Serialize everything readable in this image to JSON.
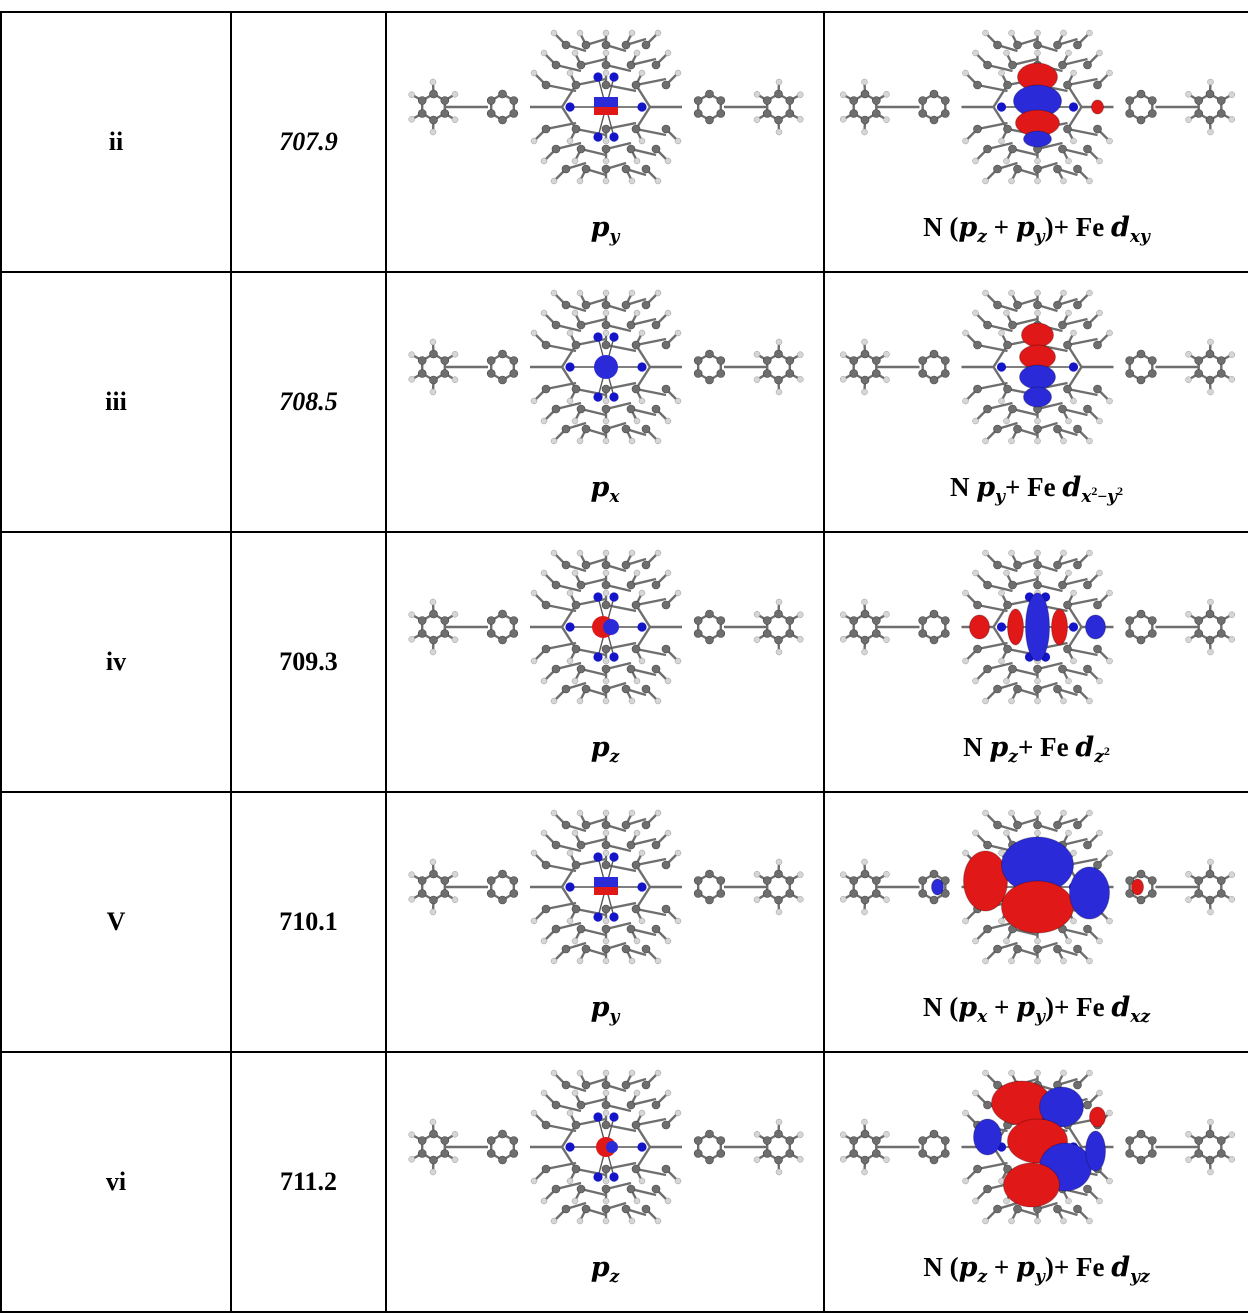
{
  "rows": [
    {
      "label": "ii",
      "energy": "707.9",
      "energy_italic": true,
      "left": {
        "pre": "",
        "var": "p",
        "sub": "y",
        "sub_sup": "",
        "sub_post": "",
        "post": ""
      },
      "right": {
        "pre": "N (",
        "terms": [
          "p",
          "z",
          "+",
          "p",
          "y"
        ],
        "post": ")+ Fe ",
        "dvar": "d",
        "dsub": "xy",
        "dsup": "",
        "dpost": ""
      },
      "right_text": "N (p_z + p_y)+ Fe d_xy",
      "orbital_style": "mo-ii"
    },
    {
      "label": "iii",
      "energy": "708.5",
      "energy_italic": true,
      "left": {
        "var": "p",
        "sub": "x"
      },
      "right_text": "N p_y+ Fe d_x²−y²",
      "orbital_style": "mo-iii"
    },
    {
      "label": "iv",
      "energy": "709.3",
      "energy_italic": false,
      "left": {
        "var": "p",
        "sub": "z"
      },
      "right_text": "N p_z+ Fe d_z²",
      "orbital_style": "mo-iv"
    },
    {
      "label": "V",
      "energy": "710.1",
      "energy_italic": false,
      "left": {
        "var": "p",
        "sub": "y"
      },
      "right_text": "N (p_x + p_y)+ Fe d_xz",
      "orbital_style": "mo-v"
    },
    {
      "label": "vi",
      "energy": "711.2",
      "energy_italic": false,
      "left": {
        "var": "p",
        "sub": "z"
      },
      "right_text": "N (p_z + p_y)+ Fe d_yz",
      "orbital_style": "mo-vi"
    }
  ],
  "colors": {
    "carbon": "#6e6e6e",
    "hydrogen": "#d6d6d6",
    "nitrogen": "#1414c8",
    "lobe_red": "#e01818",
    "lobe_blue": "#2a2ad8",
    "border": "#000000"
  }
}
